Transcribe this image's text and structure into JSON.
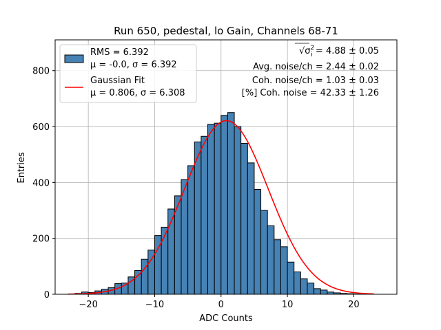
{
  "chart_data": {
    "type": "bar",
    "title": "Run 650, pedestal, lo Gain, Channels 68-71",
    "xlabel": "ADC Counts",
    "ylabel": "Entries",
    "xlim": [
      -25,
      26.5
    ],
    "ylim": [
      0,
      910
    ],
    "xticks": [
      -20,
      -10,
      0,
      10,
      20
    ],
    "yticks": [
      0,
      200,
      400,
      600,
      800
    ],
    "grid": true,
    "legend_position": "top-left",
    "colors": {
      "bars": "#4682b4",
      "bar_edge": "#000000",
      "fit": "#ff0000"
    },
    "histogram": {
      "bin_width": 1,
      "bin_starts": [
        -23,
        -22,
        -21,
        -20,
        -19,
        -18,
        -17,
        -16,
        -15,
        -14,
        -13,
        -12,
        -11,
        -10,
        -9,
        -8,
        -7,
        -6,
        -5,
        -4,
        -3,
        -2,
        -1,
        0,
        1,
        2,
        3,
        4,
        5,
        6,
        7,
        8,
        9,
        10,
        11,
        12,
        13,
        14,
        15,
        16,
        17,
        18,
        19,
        20,
        21,
        22
      ],
      "counts": [
        1,
        3,
        8,
        6,
        12,
        18,
        24,
        38,
        40,
        62,
        85,
        125,
        158,
        210,
        240,
        305,
        352,
        410,
        460,
        545,
        565,
        608,
        612,
        640,
        650,
        600,
        540,
        470,
        375,
        300,
        245,
        195,
        170,
        115,
        80,
        55,
        40,
        20,
        15,
        8,
        5,
        3,
        2,
        1,
        1,
        1
      ]
    },
    "fit_curve": {
      "name": "Gaussian Fit",
      "mu": 0.806,
      "sigma": 6.308,
      "amplitude": 621,
      "x_range": [
        -23,
        23
      ]
    },
    "legend": [
      {
        "kind": "patch",
        "lines": [
          "RMS = 6.392",
          "μ = -0.0, σ = 6.392"
        ]
      },
      {
        "kind": "line",
        "lines": [
          "Gaussian Fit",
          "μ = 0.806, σ = 6.308"
        ]
      }
    ],
    "annotations": [
      {
        "id": "sigma",
        "text": " = 4.88 ± 0.05",
        "symbol": "√σ",
        "symbol_sup": "2",
        "symbol_sub": "i"
      },
      {
        "id": "avg",
        "text": "Avg. noise/ch = 2.44 ± 0.02"
      },
      {
        "id": "coh",
        "text": "Coh. noise/ch = 1.03 ± 0.03"
      },
      {
        "id": "pct",
        "text": "[%] Coh. noise = 42.33 ± 1.26"
      }
    ]
  }
}
